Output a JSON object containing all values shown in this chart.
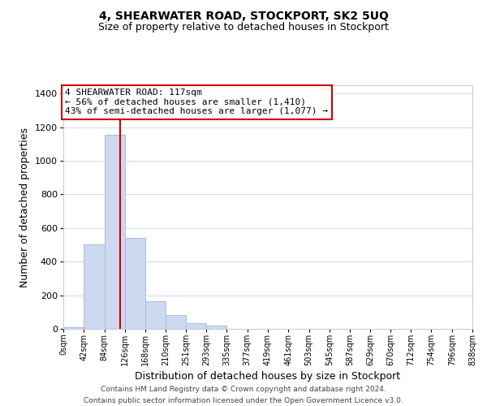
{
  "title": "4, SHEARWATER ROAD, STOCKPORT, SK2 5UQ",
  "subtitle": "Size of property relative to detached houses in Stockport",
  "xlabel": "Distribution of detached houses by size in Stockport",
  "ylabel": "Number of detached properties",
  "bar_color": "#ccd9f0",
  "bar_edge_color": "#aabbdd",
  "vline_color": "#cc0000",
  "vline_x": 117,
  "bin_edges": [
    0,
    42,
    84,
    126,
    168,
    210,
    251,
    293,
    335,
    377,
    419,
    461,
    503,
    545,
    587,
    629,
    670,
    712,
    754,
    796,
    838
  ],
  "bar_heights": [
    10,
    505,
    1155,
    540,
    163,
    82,
    35,
    20,
    0,
    0,
    0,
    0,
    0,
    0,
    0,
    0,
    0,
    0,
    0,
    0
  ],
  "xtick_labels": [
    "0sqm",
    "42sqm",
    "84sqm",
    "126sqm",
    "168sqm",
    "210sqm",
    "251sqm",
    "293sqm",
    "335sqm",
    "377sqm",
    "419sqm",
    "461sqm",
    "503sqm",
    "545sqm",
    "587sqm",
    "629sqm",
    "670sqm",
    "712sqm",
    "754sqm",
    "796sqm",
    "838sqm"
  ],
  "ylim": [
    0,
    1450
  ],
  "yticks": [
    0,
    200,
    400,
    600,
    800,
    1000,
    1200,
    1400
  ],
  "annotation_title": "4 SHEARWATER ROAD: 117sqm",
  "annotation_line1": "← 56% of detached houses are smaller (1,410)",
  "annotation_line2": "43% of semi-detached houses are larger (1,077) →",
  "annotation_box_color": "#ffffff",
  "annotation_box_edge": "#cc0000",
  "footer_line1": "Contains HM Land Registry data © Crown copyright and database right 2024.",
  "footer_line2": "Contains public sector information licensed under the Open Government Licence v3.0.",
  "background_color": "#ffffff",
  "grid_color": "#d0dde8"
}
